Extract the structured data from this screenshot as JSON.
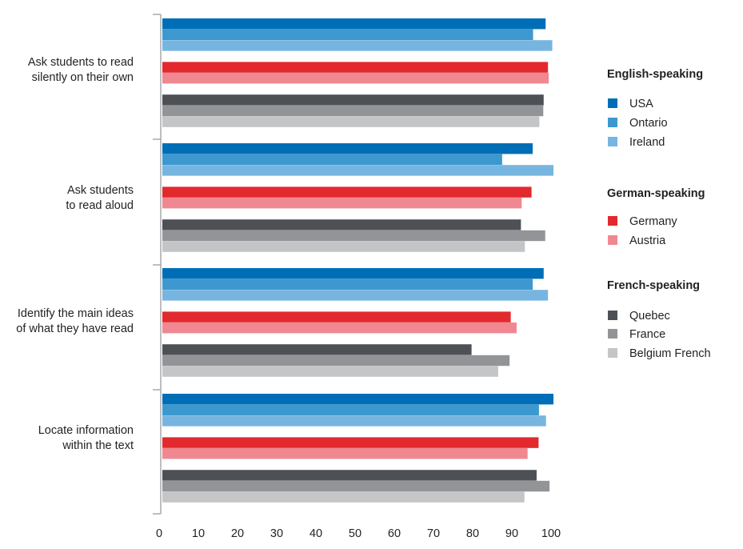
{
  "chart_data": {
    "type": "bar",
    "orientation": "horizontal",
    "categories": [
      [
        "Ask students to read",
        "silently on their own"
      ],
      [
        "Ask students",
        "to read aloud"
      ],
      [
        "Identify the main ideas",
        "of what they have read"
      ],
      [
        "Locate information",
        "within the text"
      ]
    ],
    "xlim": [
      0,
      100
    ],
    "xticks": [
      "0",
      "10",
      "20",
      "30",
      "40",
      "50",
      "60",
      "70",
      "80",
      "90",
      "100"
    ],
    "grid": false,
    "legend_position": "right",
    "groups": [
      {
        "name": "English-speaking",
        "series": [
          {
            "name": "USA",
            "color": "#006eb6",
            "values": [
              97.8,
              94.5,
              97.3,
              99.8
            ]
          },
          {
            "name": "Ontario",
            "color": "#3d98cf",
            "values": [
              94.6,
              86.7,
              94.5,
              96.1
            ]
          },
          {
            "name": "Ireland",
            "color": "#76b5df",
            "values": [
              99.5,
              99.8,
              98.4,
              97.9
            ]
          }
        ]
      },
      {
        "name": "German-speaking",
        "series": [
          {
            "name": "Germany",
            "color": "#e2292e",
            "values": [
              98.4,
              94.2,
              88.9,
              96.0
            ]
          },
          {
            "name": "Austria",
            "color": "#ef8890",
            "values": [
              98.6,
              91.7,
              90.4,
              93.2
            ]
          }
        ]
      },
      {
        "name": "French-speaking",
        "series": [
          {
            "name": "Quebec",
            "color": "#4d5156",
            "values": [
              97.3,
              91.5,
              78.9,
              95.5
            ]
          },
          {
            "name": "France",
            "color": "#929497",
            "values": [
              97.2,
              97.7,
              88.6,
              98.8
            ]
          },
          {
            "name": "Belgium French",
            "color": "#c4c5c7",
            "values": [
              96.2,
              92.5,
              85.7,
              92.4
            ]
          }
        ]
      }
    ]
  }
}
